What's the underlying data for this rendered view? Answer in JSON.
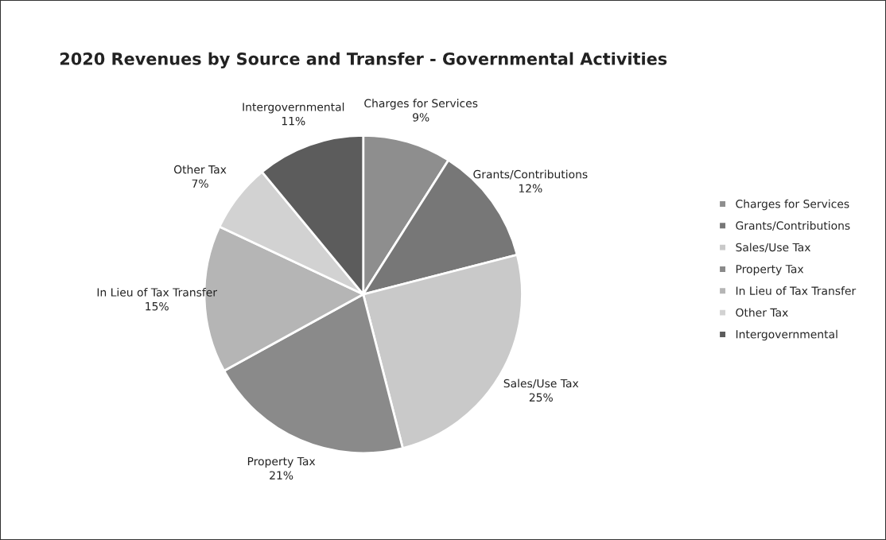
{
  "chart_data": {
    "type": "pie",
    "title": "2020 Revenues by Source and Transfer - Governmental Activities",
    "categories": [
      "Charges for Services",
      "Grants/Contributions",
      "Sales/Use Tax",
      "Property Tax",
      "In Lieu of Tax Transfer",
      "Other Tax",
      "Intergovernmental"
    ],
    "values": [
      9,
      12,
      25,
      21,
      15,
      7,
      11
    ],
    "colors": [
      "#8e8e8e",
      "#777777",
      "#c9c9c9",
      "#8a8a8a",
      "#b5b5b5",
      "#d2d2d2",
      "#5c5c5c"
    ],
    "value_labels": [
      "9%",
      "12%",
      "25%",
      "21%",
      "15%",
      "7%",
      "11%"
    ],
    "legend": "right"
  }
}
